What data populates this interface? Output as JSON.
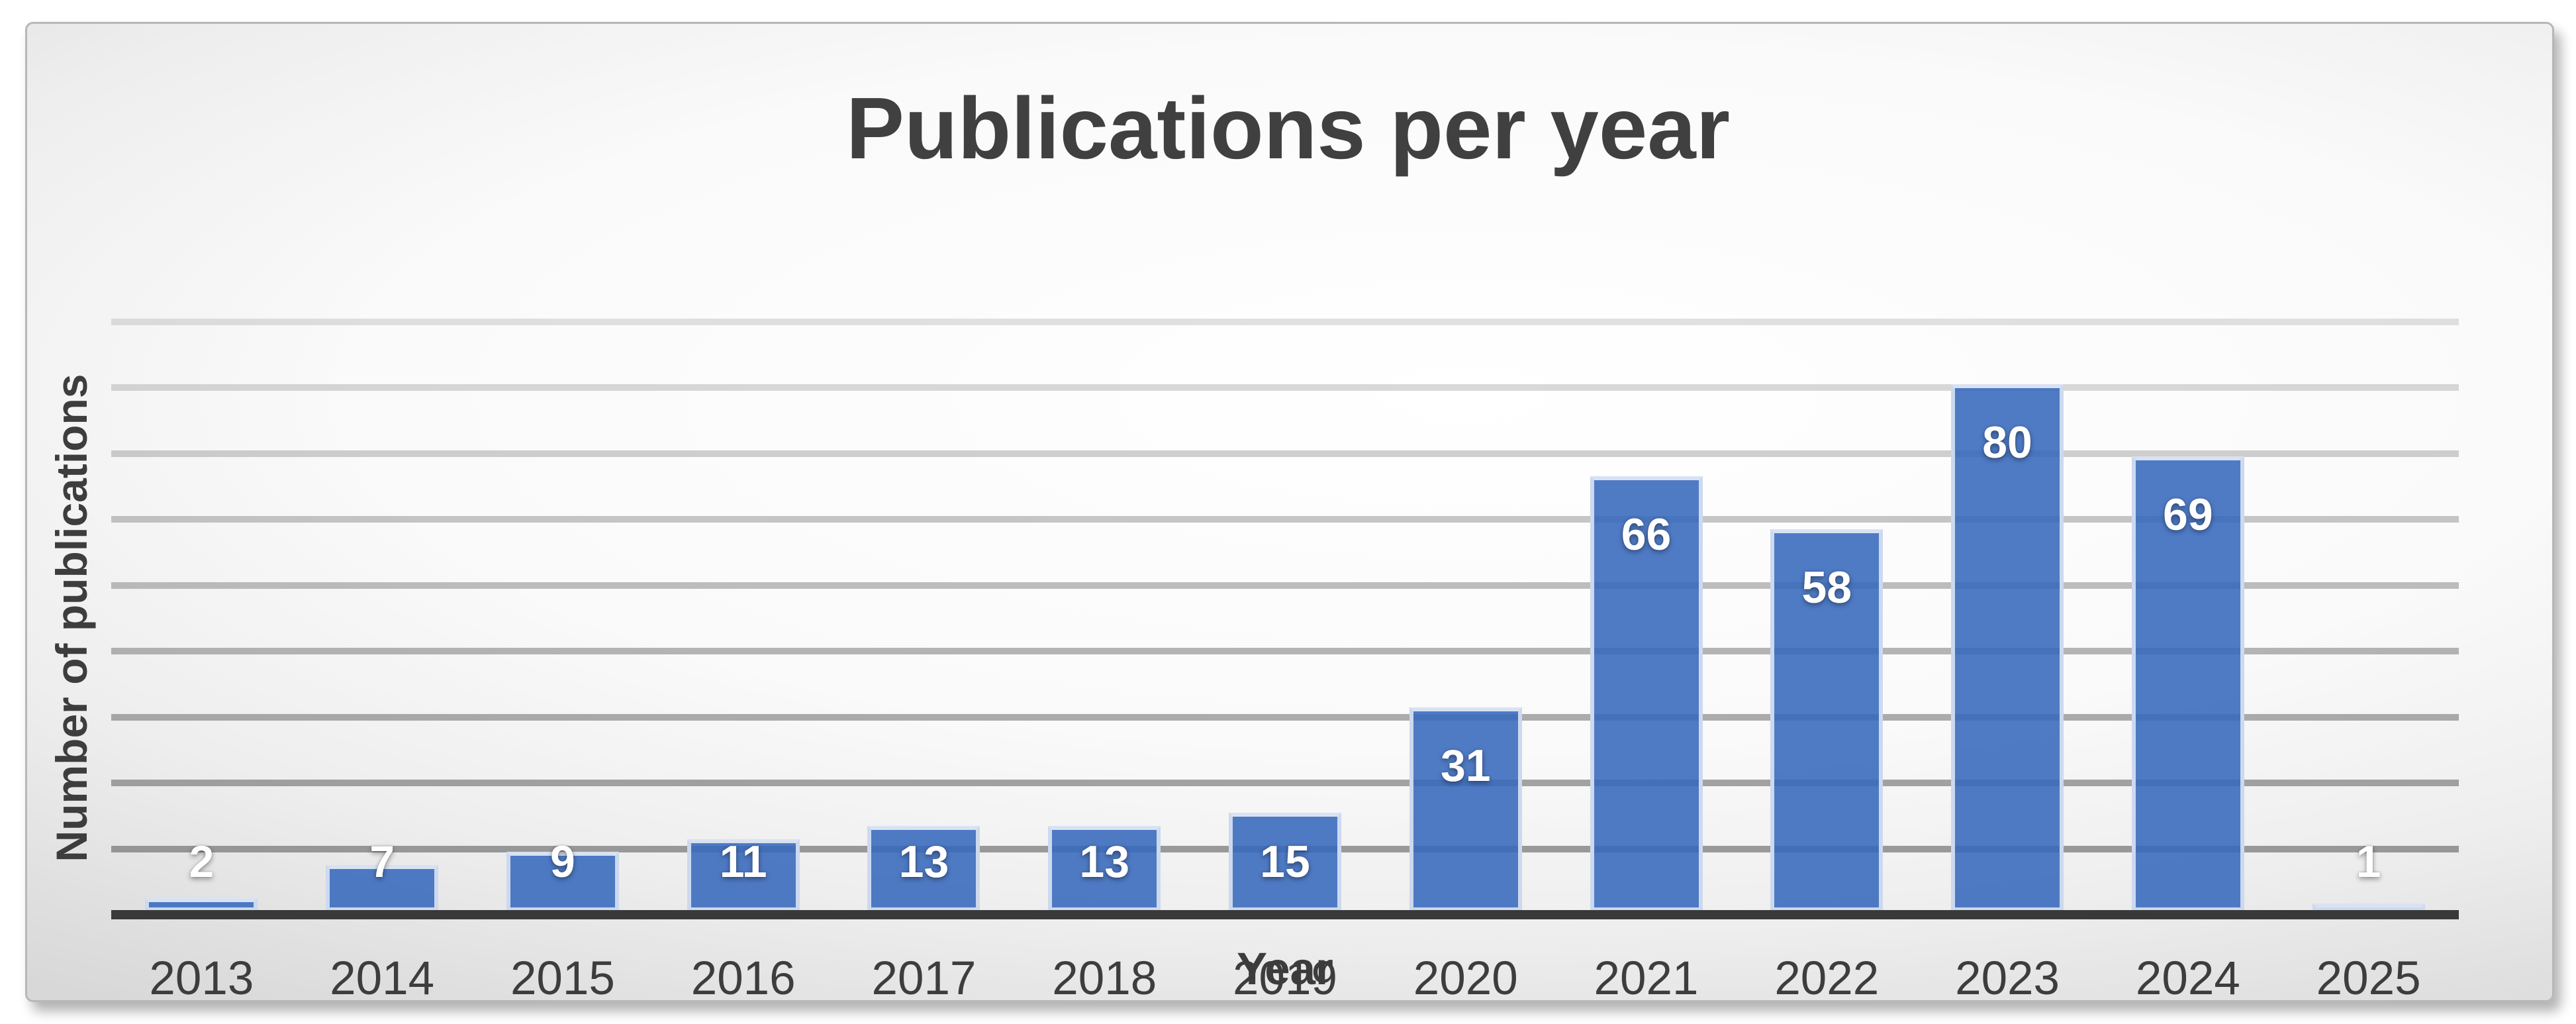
{
  "chart_data": {
    "type": "bar",
    "title": "Publications per year",
    "xlabel": "Year",
    "ylabel": "Number of publications",
    "categories": [
      "2013",
      "2014",
      "2015",
      "2016",
      "2017",
      "2018",
      "2019",
      "2020",
      "2021",
      "2022",
      "2023",
      "2024",
      "2025"
    ],
    "values": [
      2,
      7,
      9,
      11,
      13,
      13,
      15,
      31,
      66,
      58,
      80,
      69,
      1
    ],
    "ylim": [
      0,
      90
    ],
    "gridline_step": 10,
    "grid": true,
    "legend": false,
    "bar_fill_color": "rgba(55,105,189,0.88)",
    "bar_fill_hex": "#4F7BC5",
    "bar_border_color": "#CCD9EE",
    "gridline_color_base": "120,120,120",
    "axis_line_color": "#393939",
    "data_label_color": "#FFFFFF",
    "tick_label_color": "#3D3D3D",
    "title_color": "#404040"
  }
}
